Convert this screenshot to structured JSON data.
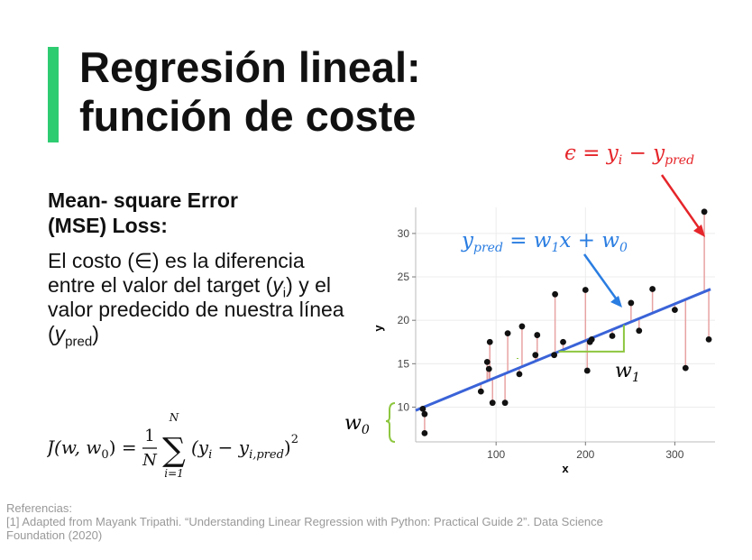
{
  "title": {
    "line1": "Regresión lineal:",
    "line2": "función de coste"
  },
  "mse": {
    "heading_line1": "Mean- square Error",
    "heading_line2": "(MSE) Loss:"
  },
  "description": {
    "part1": "El costo (",
    "symbol": "∈",
    "part2": ") es la diferencia entre el valor del target (",
    "y": "y",
    "y_sub": "i",
    "part3": ") y el valor predecido de nuestra línea (",
    "y2": "y",
    "y2_sub": "pred",
    "part4": ")"
  },
  "formula": {
    "lhs": "J(w, w",
    "lhs_sub": "0",
    "lhs_end": ") =",
    "frac_num": "1",
    "frac_den": "N",
    "sum_top": "N",
    "sum_bottom": "i=1",
    "term_y": "(y",
    "term_y_sub": "i",
    "term_minus": " − y",
    "term_pred_sub": "i,pred",
    "term_close": ")",
    "power": "2"
  },
  "annotations": {
    "error_eq": "ϵ = yi − ypred",
    "error_lhs": "ϵ = y",
    "error_i": "i",
    "error_mid": " − y",
    "error_pred": "pred",
    "pred_eq": "ypred = w1x + w0",
    "pred_y": "y",
    "pred_sub": "pred",
    "pred_mid": " = w",
    "pred_one": "1",
    "pred_x": "x + w",
    "pred_zero": "0",
    "w1_label": "w",
    "w1_sub": "1",
    "w0_label": "w",
    "w0_sub": "0"
  },
  "colors": {
    "accent": "#2ecc71",
    "regression_line": "#3a63d8",
    "error": "#e5252a",
    "green_annot": "#8dc63f",
    "residual": "#e8a3a3",
    "annot_blue": "#2a7de1"
  },
  "references": {
    "heading": "Referencias:",
    "item1_line1": "[1] Adapted from Mayank Tripathi. “Understanding Linear Regression with Python: Practical Guide 2”. Data Science",
    "item1_line2": "Foundation (2020)"
  },
  "chart_data": {
    "type": "scatter",
    "xlabel": "x",
    "ylabel": "y",
    "xlim": [
      10,
      345
    ],
    "ylim": [
      6,
      33
    ],
    "x_ticks": [
      100,
      200,
      300
    ],
    "y_ticks": [
      10,
      15,
      20,
      25,
      30
    ],
    "line": {
      "slope": 0.0423,
      "intercept": 9.2
    },
    "points": [
      {
        "x": 18,
        "y": 9.8
      },
      {
        "x": 20,
        "y": 9.2
      },
      {
        "x": 20,
        "y": 7.0
      },
      {
        "x": 83,
        "y": 11.8
      },
      {
        "x": 90,
        "y": 15.2
      },
      {
        "x": 92,
        "y": 14.4
      },
      {
        "x": 93,
        "y": 17.5
      },
      {
        "x": 96,
        "y": 10.5
      },
      {
        "x": 110,
        "y": 10.5
      },
      {
        "x": 113,
        "y": 18.5
      },
      {
        "x": 126,
        "y": 13.8
      },
      {
        "x": 129,
        "y": 19.3
      },
      {
        "x": 144,
        "y": 16.0
      },
      {
        "x": 146,
        "y": 18.3
      },
      {
        "x": 165,
        "y": 16.0
      },
      {
        "x": 166,
        "y": 23.0
      },
      {
        "x": 175,
        "y": 17.5
      },
      {
        "x": 200,
        "y": 23.5
      },
      {
        "x": 202,
        "y": 14.2
      },
      {
        "x": 205,
        "y": 17.5
      },
      {
        "x": 207,
        "y": 17.8
      },
      {
        "x": 230,
        "y": 18.2
      },
      {
        "x": 251,
        "y": 22.0
      },
      {
        "x": 260,
        "y": 18.8
      },
      {
        "x": 275,
        "y": 23.6
      },
      {
        "x": 300,
        "y": 21.2
      },
      {
        "x": 312,
        "y": 14.5
      },
      {
        "x": 333,
        "y": 32.5
      },
      {
        "x": 338,
        "y": 17.8
      }
    ]
  }
}
